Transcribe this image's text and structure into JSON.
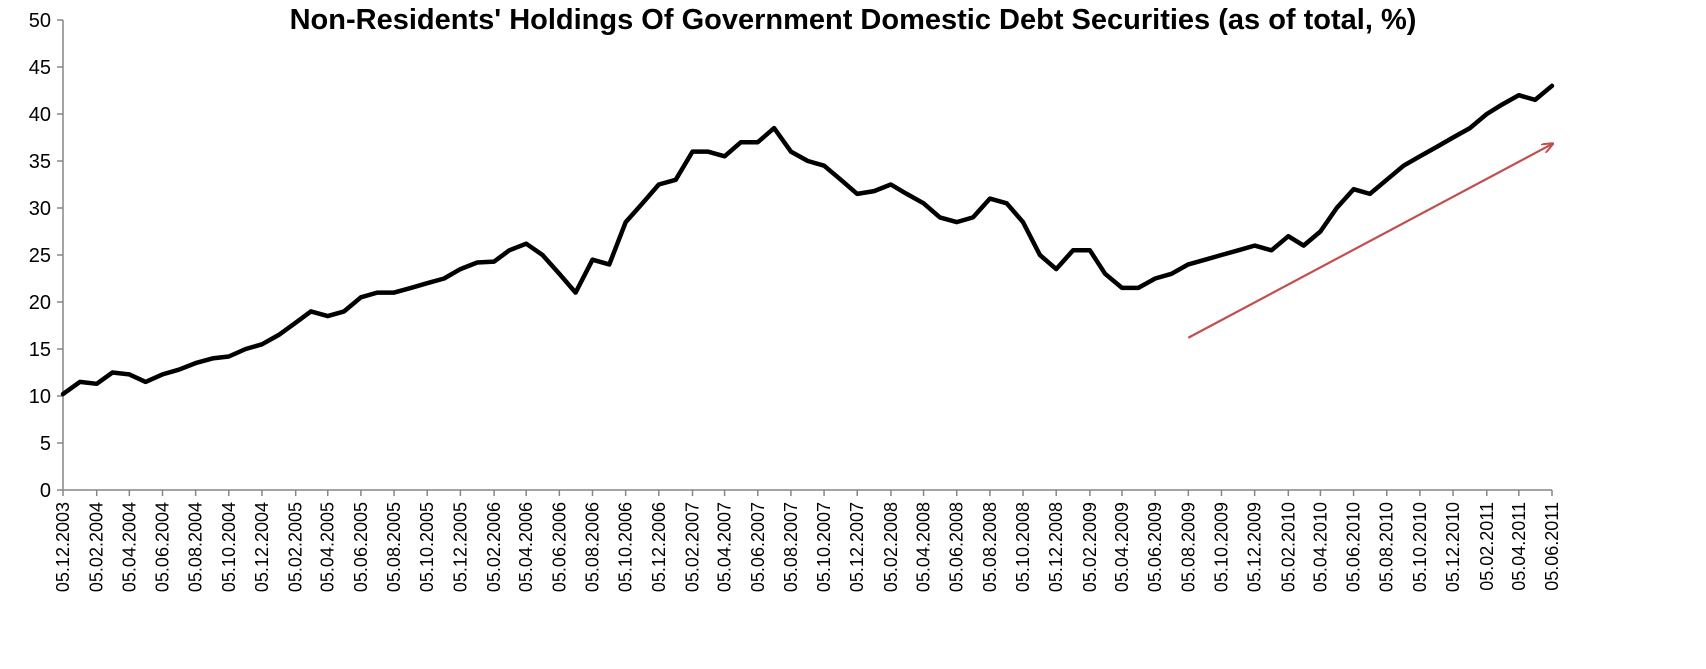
{
  "chart_data": {
    "type": "line",
    "title": "Non-Residents' Holdings Of  Government Domestic Debt Securities (as of total, %)",
    "xlabel": "",
    "ylabel": "",
    "ylim": [
      0,
      50
    ],
    "yticks": [
      "0",
      "5",
      "10",
      "15",
      "20",
      "25",
      "30",
      "35",
      "40",
      "45",
      "50"
    ],
    "xticks": [
      "05.12.2003",
      "05.02.2004",
      "05.04.2004",
      "05.06.2004",
      "05.08.2004",
      "05.10.2004",
      "05.12.2004",
      "05.02.2005",
      "05.04.2005",
      "05.06.2005",
      "05.08.2005",
      "05.10.2005",
      "05.12.2005",
      "05.02.2006",
      "05.04.2006",
      "05.06.2006",
      "05.08.2006",
      "05.10.2006",
      "05.12.2006",
      "05.02.2007",
      "05.04.2007",
      "05.06.2007",
      "05.08.2007",
      "05.10.2007",
      "05.12.2007",
      "05.02.2008",
      "05.04.2008",
      "05.06.2008",
      "05.08.2008",
      "05.10.2008",
      "05.12.2008",
      "05.02.2009",
      "05.04.2009",
      "05.06.2009",
      "05.08.2009",
      "05.10.2009",
      "05.12.2009",
      "05.02.2010",
      "05.04.2010",
      "05.06.2010",
      "05.08.2010",
      "05.10.2010",
      "05.12.2010",
      "05.02.2011",
      "05.04.2011",
      "05.06.2011"
    ],
    "grid": false,
    "series": [
      {
        "color": "#000000",
        "x": [
          "05.12.2003",
          "05.01.2004",
          "05.02.2004",
          "05.03.2004",
          "05.04.2004",
          "05.05.2004",
          "05.06.2004",
          "05.07.2004",
          "05.08.2004",
          "05.09.2004",
          "05.10.2004",
          "05.11.2004",
          "05.12.2004",
          "05.01.2005",
          "05.02.2005",
          "05.03.2005",
          "05.04.2005",
          "05.05.2005",
          "05.06.2005",
          "05.07.2005",
          "05.08.2005",
          "05.09.2005",
          "05.10.2005",
          "05.11.2005",
          "05.12.2005",
          "05.01.2006",
          "05.02.2006",
          "05.03.2006",
          "05.04.2006",
          "05.05.2006",
          "05.06.2006",
          "05.07.2006",
          "05.08.2006",
          "05.09.2006",
          "05.10.2006",
          "05.11.2006",
          "05.12.2006",
          "05.01.2007",
          "05.02.2007",
          "05.03.2007",
          "05.04.2007",
          "05.05.2007",
          "05.06.2007",
          "05.07.2007",
          "05.08.2007",
          "05.09.2007",
          "05.10.2007",
          "05.11.2007",
          "05.12.2007",
          "05.01.2008",
          "05.02.2008",
          "05.03.2008",
          "05.04.2008",
          "05.05.2008",
          "05.06.2008",
          "05.07.2008",
          "05.08.2008",
          "05.09.2008",
          "05.10.2008",
          "05.11.2008",
          "05.12.2008",
          "05.01.2009",
          "05.02.2009",
          "05.03.2009",
          "05.04.2009",
          "05.05.2009",
          "05.06.2009",
          "05.07.2009",
          "05.08.2009",
          "05.09.2009",
          "05.10.2009",
          "05.11.2009",
          "05.12.2009",
          "05.01.2010",
          "05.02.2010",
          "05.03.2010",
          "05.04.2010",
          "05.05.2010",
          "05.06.2010",
          "05.07.2010",
          "05.08.2010",
          "05.09.2010",
          "05.10.2010",
          "05.11.2010",
          "05.12.2010",
          "05.01.2011",
          "05.02.2011",
          "05.03.2011",
          "05.04.2011",
          "05.05.2011",
          "05.06.2011"
        ],
        "values": [
          10.2,
          11.5,
          11.3,
          12.5,
          12.3,
          11.5,
          12.3,
          12.8,
          13.5,
          14.0,
          14.2,
          15.0,
          15.5,
          16.5,
          17.8,
          19.0,
          18.5,
          19.0,
          20.5,
          21.0,
          21.0,
          21.5,
          22.0,
          22.5,
          23.5,
          24.2,
          24.3,
          25.5,
          26.2,
          25.0,
          23.0,
          21.0,
          24.5,
          24.0,
          28.5,
          30.5,
          32.5,
          33.0,
          36.0,
          36.0,
          35.5,
          37.0,
          37.0,
          38.5,
          36.0,
          35.0,
          34.5,
          33.0,
          31.5,
          31.8,
          32.5,
          31.5,
          30.5,
          29.0,
          28.5,
          29.0,
          31.0,
          30.5,
          28.5,
          25.0,
          23.5,
          25.5,
          25.5,
          23.0,
          21.5,
          21.5,
          22.5,
          23.0,
          24.0,
          24.5,
          25.0,
          25.5,
          26.0,
          25.5,
          27.0,
          26.0,
          27.5,
          30.0,
          32.0,
          31.5,
          33.0,
          34.5,
          35.5,
          36.5,
          37.5,
          38.5,
          40.0,
          41.0,
          42.0,
          41.5,
          43.0
        ]
      }
    ],
    "annotations": [
      {
        "type": "arrow",
        "color": "#c0504d",
        "from": [
          "05.08.2009",
          16.2
        ],
        "to": [
          "05.06.2011",
          36.8
        ]
      }
    ]
  }
}
